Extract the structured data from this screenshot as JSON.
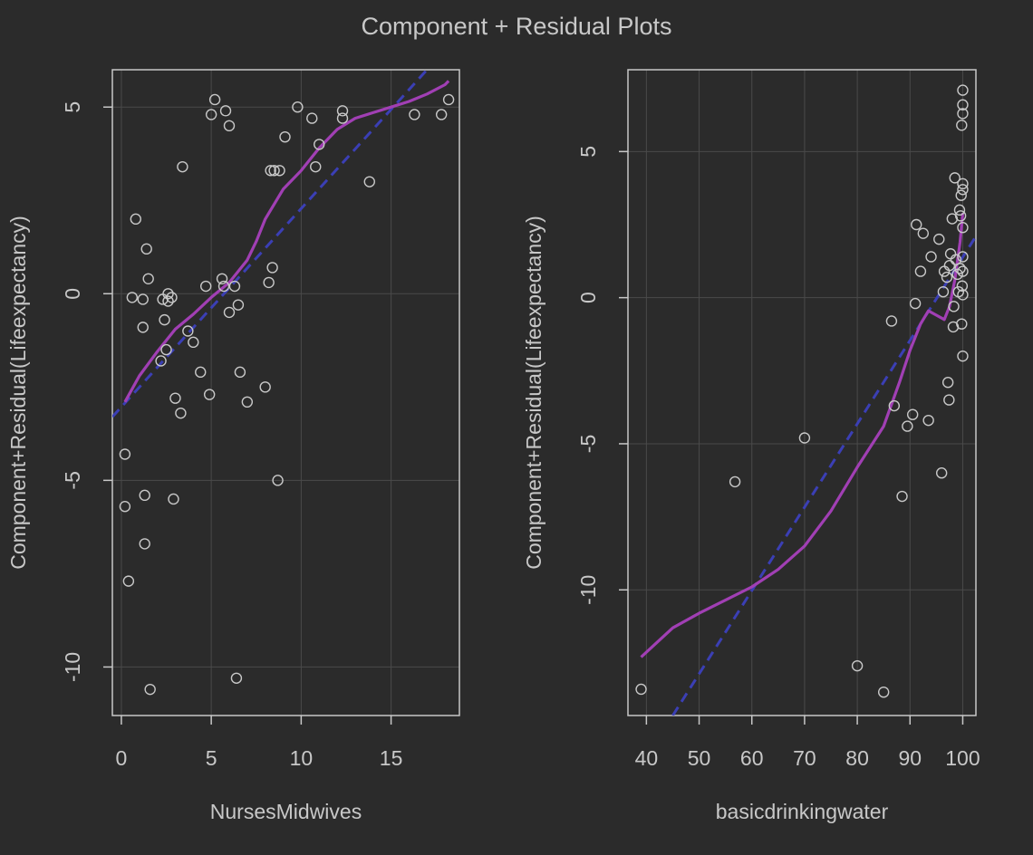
{
  "title": "Component + Residual Plots",
  "colors": {
    "background": "#2b2b2b",
    "frame": "#c8c8c8",
    "grid": "#4a4a4a",
    "text": "#c8c8c8",
    "points": "#c8c8c8",
    "component_line": "#3b3fb5",
    "residual_smooth": "#a13fb4"
  },
  "chart_data": [
    {
      "type": "scatter",
      "xlabel": "NursesMidwives",
      "ylabel": "Component+Residual(Lifeexpectancy)",
      "xlim": [
        -0.5,
        18.8
      ],
      "ylim": [
        -11.3,
        6.0
      ],
      "xticks": [
        0,
        5,
        10,
        15
      ],
      "yticks": [
        -10,
        -5,
        0,
        5
      ],
      "grid": true,
      "points": [
        [
          0.2,
          -4.3
        ],
        [
          0.2,
          -5.7
        ],
        [
          0.4,
          -7.7
        ],
        [
          0.6,
          -0.1
        ],
        [
          0.8,
          2.0
        ],
        [
          1.2,
          -0.9
        ],
        [
          1.2,
          -0.15
        ],
        [
          1.3,
          -5.4
        ],
        [
          1.3,
          -6.7
        ],
        [
          1.4,
          1.2
        ],
        [
          1.5,
          0.4
        ],
        [
          1.6,
          -10.6
        ],
        [
          2.2,
          -1.8
        ],
        [
          2.3,
          -0.15
        ],
        [
          2.4,
          -0.7
        ],
        [
          2.5,
          -1.5
        ],
        [
          2.6,
          0.0
        ],
        [
          2.6,
          -0.2
        ],
        [
          2.8,
          -0.1
        ],
        [
          2.9,
          -5.5
        ],
        [
          3.0,
          -2.8
        ],
        [
          3.3,
          -3.2
        ],
        [
          3.4,
          3.4
        ],
        [
          3.7,
          -1.0
        ],
        [
          4.0,
          -1.3
        ],
        [
          4.4,
          -2.1
        ],
        [
          4.7,
          0.2
        ],
        [
          4.9,
          -2.7
        ],
        [
          5.0,
          4.8
        ],
        [
          5.2,
          5.2
        ],
        [
          5.6,
          0.4
        ],
        [
          5.7,
          0.2
        ],
        [
          5.8,
          4.9
        ],
        [
          6.0,
          -0.5
        ],
        [
          6.0,
          4.5
        ],
        [
          6.3,
          0.2
        ],
        [
          6.4,
          -10.3
        ],
        [
          6.5,
          -0.3
        ],
        [
          6.6,
          -2.1
        ],
        [
          7.0,
          -2.9
        ],
        [
          8.0,
          -2.5
        ],
        [
          8.2,
          0.3
        ],
        [
          8.3,
          3.3
        ],
        [
          8.4,
          0.7
        ],
        [
          8.5,
          3.3
        ],
        [
          8.7,
          -5.0
        ],
        [
          8.8,
          3.3
        ],
        [
          9.1,
          4.2
        ],
        [
          9.8,
          5.0
        ],
        [
          10.6,
          4.7
        ],
        [
          10.8,
          3.4
        ],
        [
          11.0,
          4.0
        ],
        [
          12.3,
          4.7
        ],
        [
          12.3,
          4.9
        ],
        [
          13.8,
          3.0
        ],
        [
          16.3,
          4.8
        ],
        [
          17.8,
          4.8
        ],
        [
          18.2,
          5.2
        ]
      ],
      "component_line": [
        [
          -0.5,
          -3.3
        ],
        [
          17.0,
          6.0
        ]
      ],
      "smooth": [
        [
          0.2,
          -2.9
        ],
        [
          1.0,
          -2.2
        ],
        [
          2.0,
          -1.55
        ],
        [
          3.0,
          -0.95
        ],
        [
          4.0,
          -0.55
        ],
        [
          5.0,
          -0.1
        ],
        [
          6.0,
          0.3
        ],
        [
          7.0,
          0.9
        ],
        [
          7.5,
          1.4
        ],
        [
          8.0,
          2.0
        ],
        [
          9.0,
          2.8
        ],
        [
          10.0,
          3.3
        ],
        [
          11.0,
          3.9
        ],
        [
          12.0,
          4.4
        ],
        [
          13.0,
          4.7
        ],
        [
          14.0,
          4.85
        ],
        [
          15.0,
          5.0
        ],
        [
          16.0,
          5.15
        ],
        [
          17.0,
          5.35
        ],
        [
          18.0,
          5.6
        ],
        [
          18.2,
          5.7
        ]
      ]
    },
    {
      "type": "scatter",
      "xlabel": "basicdrinkingwater",
      "ylabel": "Component+Residual(Lifeexpectancy)",
      "xlim": [
        36.5,
        102.5
      ],
      "ylim": [
        -14.3,
        7.8
      ],
      "xticks": [
        40,
        50,
        60,
        70,
        80,
        90,
        100
      ],
      "yticks": [
        -10,
        -5,
        0,
        5
      ],
      "grid": true,
      "points": [
        [
          39.0,
          -13.4
        ],
        [
          56.8,
          -6.3
        ],
        [
          70.0,
          -4.8
        ],
        [
          80.0,
          -12.6
        ],
        [
          85.0,
          -13.5
        ],
        [
          86.5,
          -0.8
        ],
        [
          87.0,
          -3.7
        ],
        [
          88.5,
          -6.8
        ],
        [
          89.5,
          -4.4
        ],
        [
          90.5,
          -4.0
        ],
        [
          91.0,
          -0.2
        ],
        [
          91.2,
          2.5
        ],
        [
          92.0,
          0.9
        ],
        [
          92.5,
          2.2
        ],
        [
          93.5,
          -4.2
        ],
        [
          94.0,
          1.4
        ],
        [
          95.5,
          2.0
        ],
        [
          96.0,
          -6.0
        ],
        [
          96.3,
          0.2
        ],
        [
          96.5,
          0.9
        ],
        [
          97.0,
          0.7
        ],
        [
          97.2,
          -2.9
        ],
        [
          97.4,
          -3.5
        ],
        [
          97.5,
          1.1
        ],
        [
          97.7,
          1.5
        ],
        [
          98.0,
          2.7
        ],
        [
          98.2,
          -1.0
        ],
        [
          98.3,
          -0.3
        ],
        [
          98.5,
          4.1
        ],
        [
          98.7,
          1.3
        ],
        [
          99.0,
          0.8
        ],
        [
          99.2,
          0.2
        ],
        [
          99.4,
          3.0
        ],
        [
          99.5,
          1.0
        ],
        [
          99.6,
          2.8
        ],
        [
          99.7,
          3.5
        ],
        [
          99.8,
          5.9
        ],
        [
          99.8,
          -0.9
        ],
        [
          99.9,
          0.4
        ],
        [
          100.0,
          6.3
        ],
        [
          100.0,
          6.6
        ],
        [
          100.0,
          7.1
        ],
        [
          100.0,
          3.9
        ],
        [
          100.0,
          3.7
        ],
        [
          100.0,
          2.4
        ],
        [
          100.0,
          1.4
        ],
        [
          100.0,
          0.9
        ],
        [
          100.0,
          0.1
        ],
        [
          100.0,
          -2.0
        ]
      ],
      "component_line": [
        [
          45.0,
          -14.3
        ],
        [
          102.5,
          2.1
        ]
      ],
      "smooth": [
        [
          39.0,
          -12.3
        ],
        [
          42.0,
          -11.8
        ],
        [
          45.0,
          -11.3
        ],
        [
          50.0,
          -10.8
        ],
        [
          55.0,
          -10.35
        ],
        [
          60.0,
          -9.9
        ],
        [
          65.0,
          -9.3
        ],
        [
          70.0,
          -8.5
        ],
        [
          75.0,
          -7.3
        ],
        [
          80.0,
          -5.8
        ],
        [
          85.0,
          -4.4
        ],
        [
          88.0,
          -2.9
        ],
        [
          90.0,
          -1.8
        ],
        [
          92.0,
          -0.9
        ],
        [
          93.5,
          -0.45
        ],
        [
          95.0,
          -0.6
        ],
        [
          96.5,
          -0.75
        ],
        [
          97.5,
          -0.3
        ],
        [
          98.5,
          0.6
        ],
        [
          99.5,
          1.9
        ],
        [
          100.0,
          2.9
        ]
      ]
    }
  ]
}
